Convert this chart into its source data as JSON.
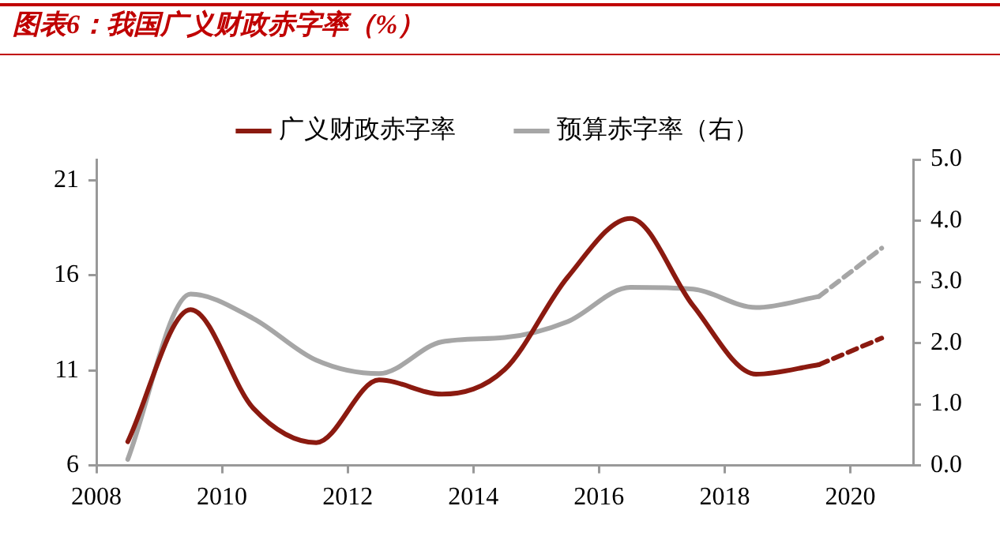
{
  "chart_data": {
    "type": "line",
    "title": "图表6：我国广义财政赤字率（%）",
    "x": [
      2008.5,
      2009.5,
      2010.5,
      2011.5,
      2012.5,
      2013.5,
      2014.5,
      2015.5,
      2016.5,
      2017.5,
      2018.5,
      2019.5,
      2020.5
    ],
    "series": [
      {
        "name": "广义财政赤字率",
        "color": "#8b1a10",
        "values": [
          7.25,
          14.2,
          9.0,
          7.2,
          10.5,
          9.75,
          11.05,
          15.9,
          19.0,
          14.4,
          10.8,
          11.3,
          null
        ]
      },
      {
        "color": "#8b1a10",
        "line_style": "dashed",
        "values": [
          null,
          null,
          null,
          null,
          null,
          null,
          null,
          null,
          null,
          null,
          null,
          11.3,
          12.7
        ]
      },
      {
        "name": "预算赤字率（右）",
        "color": "#a6a6a6",
        "axis": "y2",
        "values": [
          0.1,
          2.8,
          2.4,
          1.72,
          1.5,
          2.02,
          2.09,
          2.35,
          2.91,
          2.88,
          2.58,
          2.76,
          null
        ]
      },
      {
        "color": "#a6a6a6",
        "axis": "y2",
        "line_style": "dashed",
        "values": [
          null,
          null,
          null,
          null,
          null,
          null,
          null,
          null,
          null,
          null,
          null,
          2.76,
          3.55
        ]
      }
    ],
    "xlim": [
      2008,
      2021
    ],
    "xticks": [
      2008,
      2010,
      2012,
      2014,
      2016,
      2018,
      2020
    ],
    "ylim": [
      6,
      22.1
    ],
    "yticks": [
      6,
      11,
      16,
      21
    ],
    "y2lim": [
      0,
      5
    ],
    "y2ticks": [
      {
        "value": 0,
        "label": "0.0"
      },
      {
        "value": 1,
        "label": "1.0"
      },
      {
        "value": 2,
        "label": "2.0"
      },
      {
        "value": 3,
        "label": "3.0"
      },
      {
        "value": 4,
        "label": "4.0"
      },
      {
        "value": 5,
        "label": "5.0"
      }
    ],
    "grid": false,
    "legend": "top",
    "marker": "none",
    "line_style": "solid"
  }
}
